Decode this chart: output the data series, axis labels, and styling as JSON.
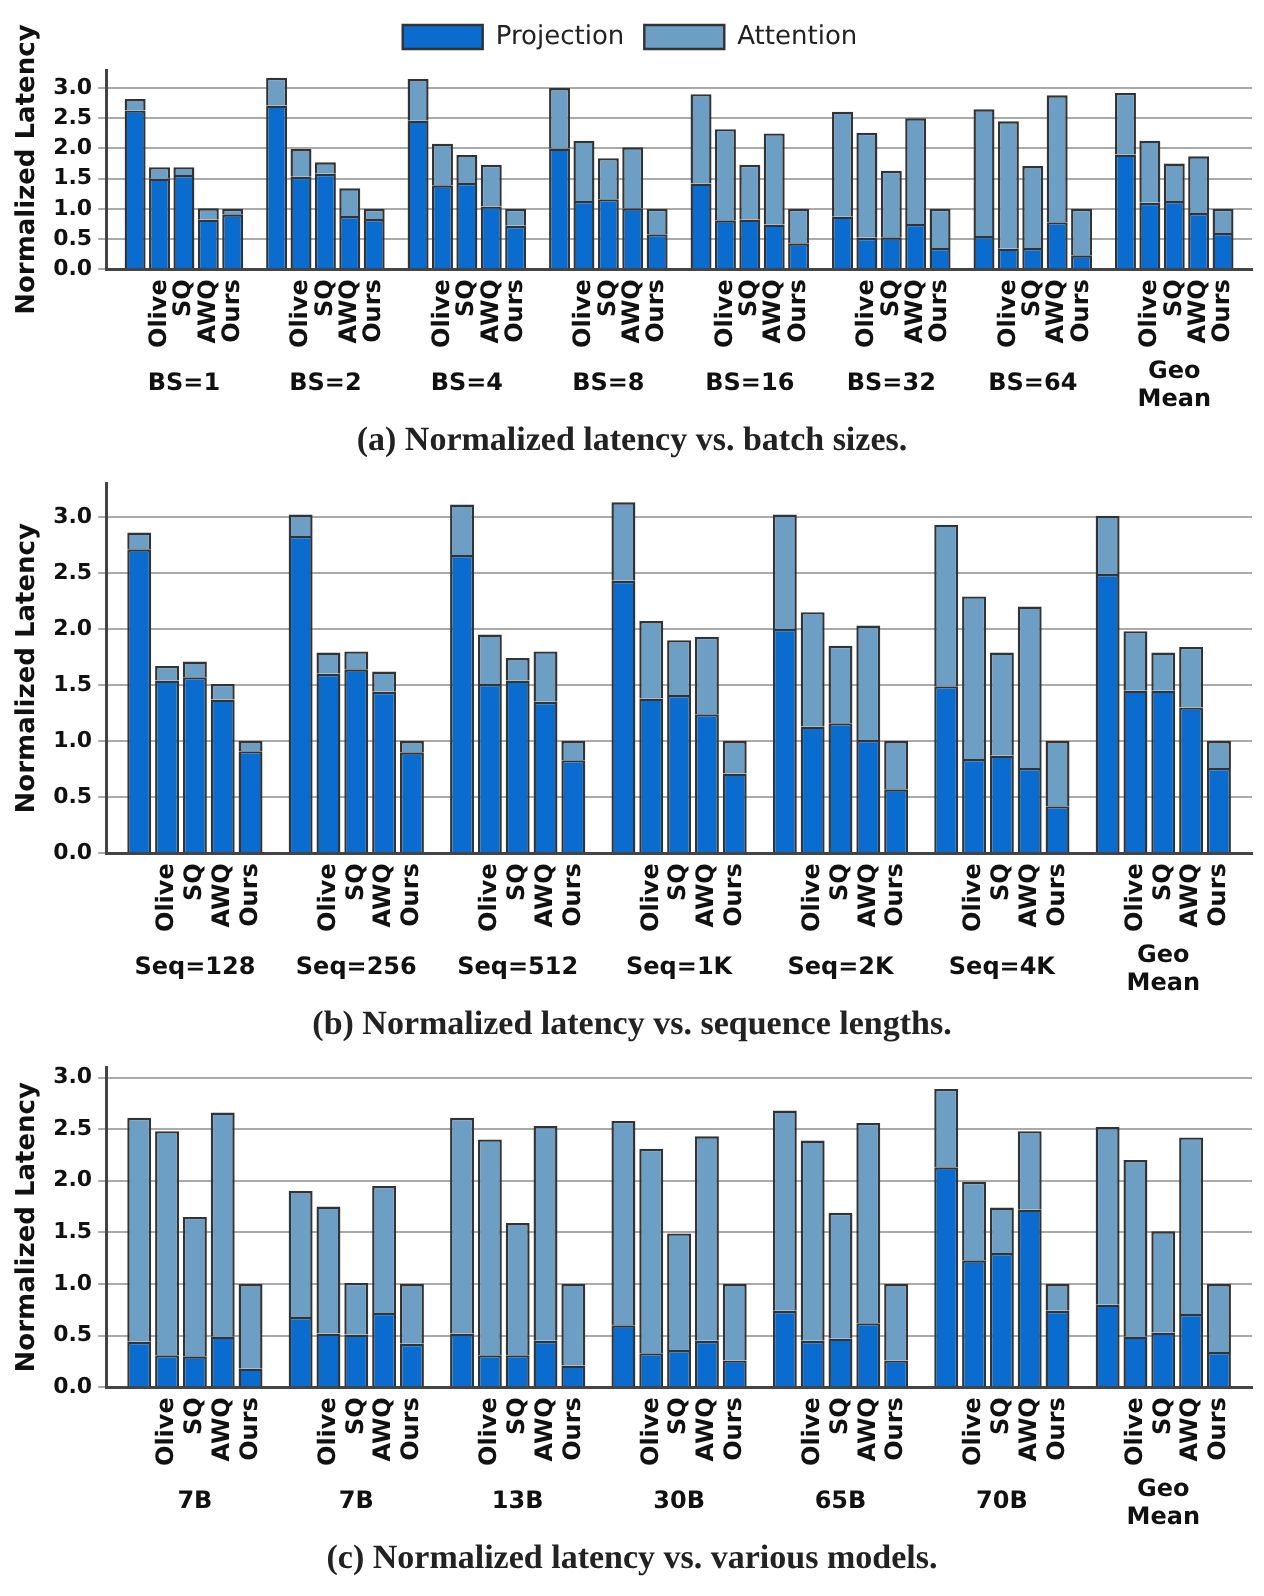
{
  "chart_data": [
    {
      "type": "bar",
      "stacked": true,
      "title": "(a) Normalized latency vs. batch sizes.",
      "ylabel": "Normalized Latency",
      "legend": "top",
      "grid": "y",
      "categories": [
        null,
        "Olive",
        "SQ",
        "AWQ",
        "Ours",
        null,
        "Olive",
        "SQ",
        "AWQ",
        "Ours",
        null,
        "Olive",
        "SQ",
        "AWQ",
        "Ours",
        null,
        "Olive",
        "SQ",
        "AWQ",
        "Ours",
        null,
        "Olive",
        "SQ",
        "AWQ",
        "Ours",
        null,
        "Olive",
        "SQ",
        "AWQ",
        "Ours",
        null,
        "Olive",
        "SQ",
        "AWQ",
        "Ours",
        null,
        "Olive",
        "SQ",
        "AWQ",
        "Ours"
      ],
      "annotations": [
        "BS=1",
        "BS=2",
        "BS=4",
        "BS=8",
        "BS=16",
        "BS=32",
        "BS=64",
        "Geo Mean"
      ],
      "ylim": [
        0,
        3.3
      ],
      "yticks": [
        {
          "value": 0,
          "label": "0.0"
        },
        {
          "value": 0.5,
          "label": "0.5"
        },
        {
          "value": 1,
          "label": "1.0"
        },
        {
          "value": 1.5,
          "label": "1.5"
        },
        {
          "value": 2,
          "label": "2.0"
        },
        {
          "value": 2.5,
          "label": "2.5"
        },
        {
          "value": 3,
          "label": "3.0"
        }
      ],
      "series": [
        {
          "name": "Projection",
          "color": "#0a6cce",
          "values": [
            2.63,
            1.5,
            1.56,
            0.82,
            0.91,
            2.71,
            1.53,
            1.58,
            0.88,
            0.83,
            2.46,
            1.39,
            1.43,
            1.04,
            0.72,
            2.0,
            1.13,
            1.16,
            1.01,
            0.58,
            1.42,
            0.81,
            0.82,
            0.74,
            0.43,
            0.87,
            0.52,
            0.53,
            0.75,
            0.35,
            0.55,
            0.34,
            0.35,
            0.78,
            0.23,
            1.9,
            1.1,
            1.13,
            0.93,
            0.6
          ]
        },
        {
          "name": "Attention",
          "color": "#6d9ec4",
          "values": [
            0.19,
            0.19,
            0.13,
            0.19,
            0.09,
            0.46,
            0.46,
            0.19,
            0.46,
            0.17,
            0.69,
            0.69,
            0.46,
            0.69,
            0.28,
            1.0,
            1.0,
            0.68,
            1.01,
            0.42,
            1.48,
            1.51,
            0.91,
            1.51,
            0.57,
            1.74,
            1.74,
            1.1,
            1.75,
            0.65,
            2.1,
            2.11,
            1.36,
            2.1,
            0.77,
            1.02,
            1.03,
            0.62,
            0.94,
            0.4
          ]
        }
      ]
    },
    {
      "type": "bar",
      "stacked": true,
      "title": "(b) Normalized latency vs. sequence lengths.",
      "ylabel": "Normalized Latency",
      "grid": "y",
      "categories": [
        null,
        "Olive",
        "SQ",
        "AWQ",
        "Ours",
        null,
        "Olive",
        "SQ",
        "AWQ",
        "Ours",
        null,
        "Olive",
        "SQ",
        "AWQ",
        "Ours",
        null,
        "Olive",
        "SQ",
        "AWQ",
        "Ours",
        null,
        "Olive",
        "SQ",
        "AWQ",
        "Ours",
        null,
        "Olive",
        "SQ",
        "AWQ",
        "Ours",
        null,
        "Olive",
        "SQ",
        "AWQ",
        "Ours"
      ],
      "annotations": [
        "Seq=128",
        "Seq=256",
        "Seq=512",
        "Seq=1K",
        "Seq=2K",
        "Seq=4K",
        "Geo Mean"
      ],
      "ylim": [
        0,
        3.3
      ],
      "yticks": [
        {
          "value": 0,
          "label": "0.0"
        },
        {
          "value": 0.5,
          "label": "0.5"
        },
        {
          "value": 1,
          "label": "1.0"
        },
        {
          "value": 1.5,
          "label": "1.5"
        },
        {
          "value": 2,
          "label": "2.0"
        },
        {
          "value": 2.5,
          "label": "2.5"
        },
        {
          "value": 3,
          "label": "3.0"
        }
      ],
      "series": [
        {
          "color": "#0a6cce",
          "values": [
            2.71,
            1.54,
            1.57,
            1.37,
            0.91,
            2.83,
            1.6,
            1.64,
            1.44,
            0.9,
            2.66,
            1.51,
            1.54,
            1.35,
            0.83,
            2.43,
            1.38,
            1.41,
            1.24,
            0.71,
            2.0,
            1.13,
            1.16,
            1.01,
            0.57,
            1.49,
            0.84,
            0.87,
            0.76,
            0.42,
            2.49,
            1.45,
            1.45,
            1.3,
            0.76
          ]
        },
        {
          "color": "#6d9ec4",
          "values": [
            0.15,
            0.13,
            0.14,
            0.14,
            0.09,
            0.19,
            0.19,
            0.16,
            0.18,
            0.1,
            0.45,
            0.44,
            0.2,
            0.45,
            0.17,
            0.7,
            0.69,
            0.49,
            0.69,
            0.29,
            1.02,
            1.02,
            0.69,
            1.02,
            0.43,
            1.44,
            1.45,
            0.92,
            1.44,
            0.58,
            0.52,
            0.53,
            0.34,
            0.54,
            0.24
          ]
        }
      ]
    },
    {
      "type": "bar",
      "stacked": true,
      "title": "(c) Normalized latency vs. various models.",
      "ylabel": "Normalized Latency",
      "grid": "y",
      "categories": [
        null,
        "Olive",
        "SQ",
        "AWQ",
        "Ours",
        null,
        "Olive",
        "SQ",
        "AWQ",
        "Ours",
        null,
        "Olive",
        "SQ",
        "AWQ",
        "Ours",
        null,
        "Olive",
        "SQ",
        "AWQ",
        "Ours",
        null,
        "Olive",
        "SQ",
        "AWQ",
        "Ours",
        null,
        "Olive",
        "SQ",
        "AWQ",
        "Ours",
        null,
        "Olive",
        "SQ",
        "AWQ",
        "Ours"
      ],
      "annotations": [
        "7B",
        "7B",
        "13B",
        "30B",
        "65B",
        "70B",
        "Geo Mean"
      ],
      "ylim": [
        0,
        3.1
      ],
      "yticks": [
        {
          "value": 0,
          "label": "0.0"
        },
        {
          "value": 0.5,
          "label": "0.5"
        },
        {
          "value": 1,
          "label": "1.0"
        },
        {
          "value": 1.5,
          "label": "1.5"
        },
        {
          "value": 2,
          "label": "2.0"
        },
        {
          "value": 2.5,
          "label": "2.5"
        },
        {
          "value": 3,
          "label": "3.0"
        }
      ],
      "series": [
        {
          "color": "#0a6cce",
          "values": [
            0.44,
            0.31,
            0.3,
            0.49,
            0.18,
            0.68,
            0.52,
            0.51,
            0.72,
            0.42,
            0.52,
            0.31,
            0.31,
            0.45,
            0.21,
            0.6,
            0.33,
            0.36,
            0.45,
            0.26,
            0.74,
            0.45,
            0.47,
            0.62,
            0.26,
            2.13,
            1.23,
            1.3,
            1.72,
            0.74,
            0.8,
            0.49,
            0.53,
            0.71,
            0.34
          ]
        },
        {
          "color": "#6d9ec4",
          "values": [
            2.17,
            2.17,
            1.35,
            2.17,
            0.82,
            1.22,
            1.23,
            0.5,
            1.23,
            0.58,
            2.09,
            2.09,
            1.28,
            2.08,
            0.79,
            1.98,
            1.98,
            1.13,
            1.98,
            0.74,
            1.94,
            1.94,
            1.22,
            1.94,
            0.74,
            0.76,
            0.76,
            0.44,
            0.76,
            0.26,
            1.72,
            1.71,
            0.98,
            1.71,
            0.66
          ]
        }
      ]
    }
  ]
}
